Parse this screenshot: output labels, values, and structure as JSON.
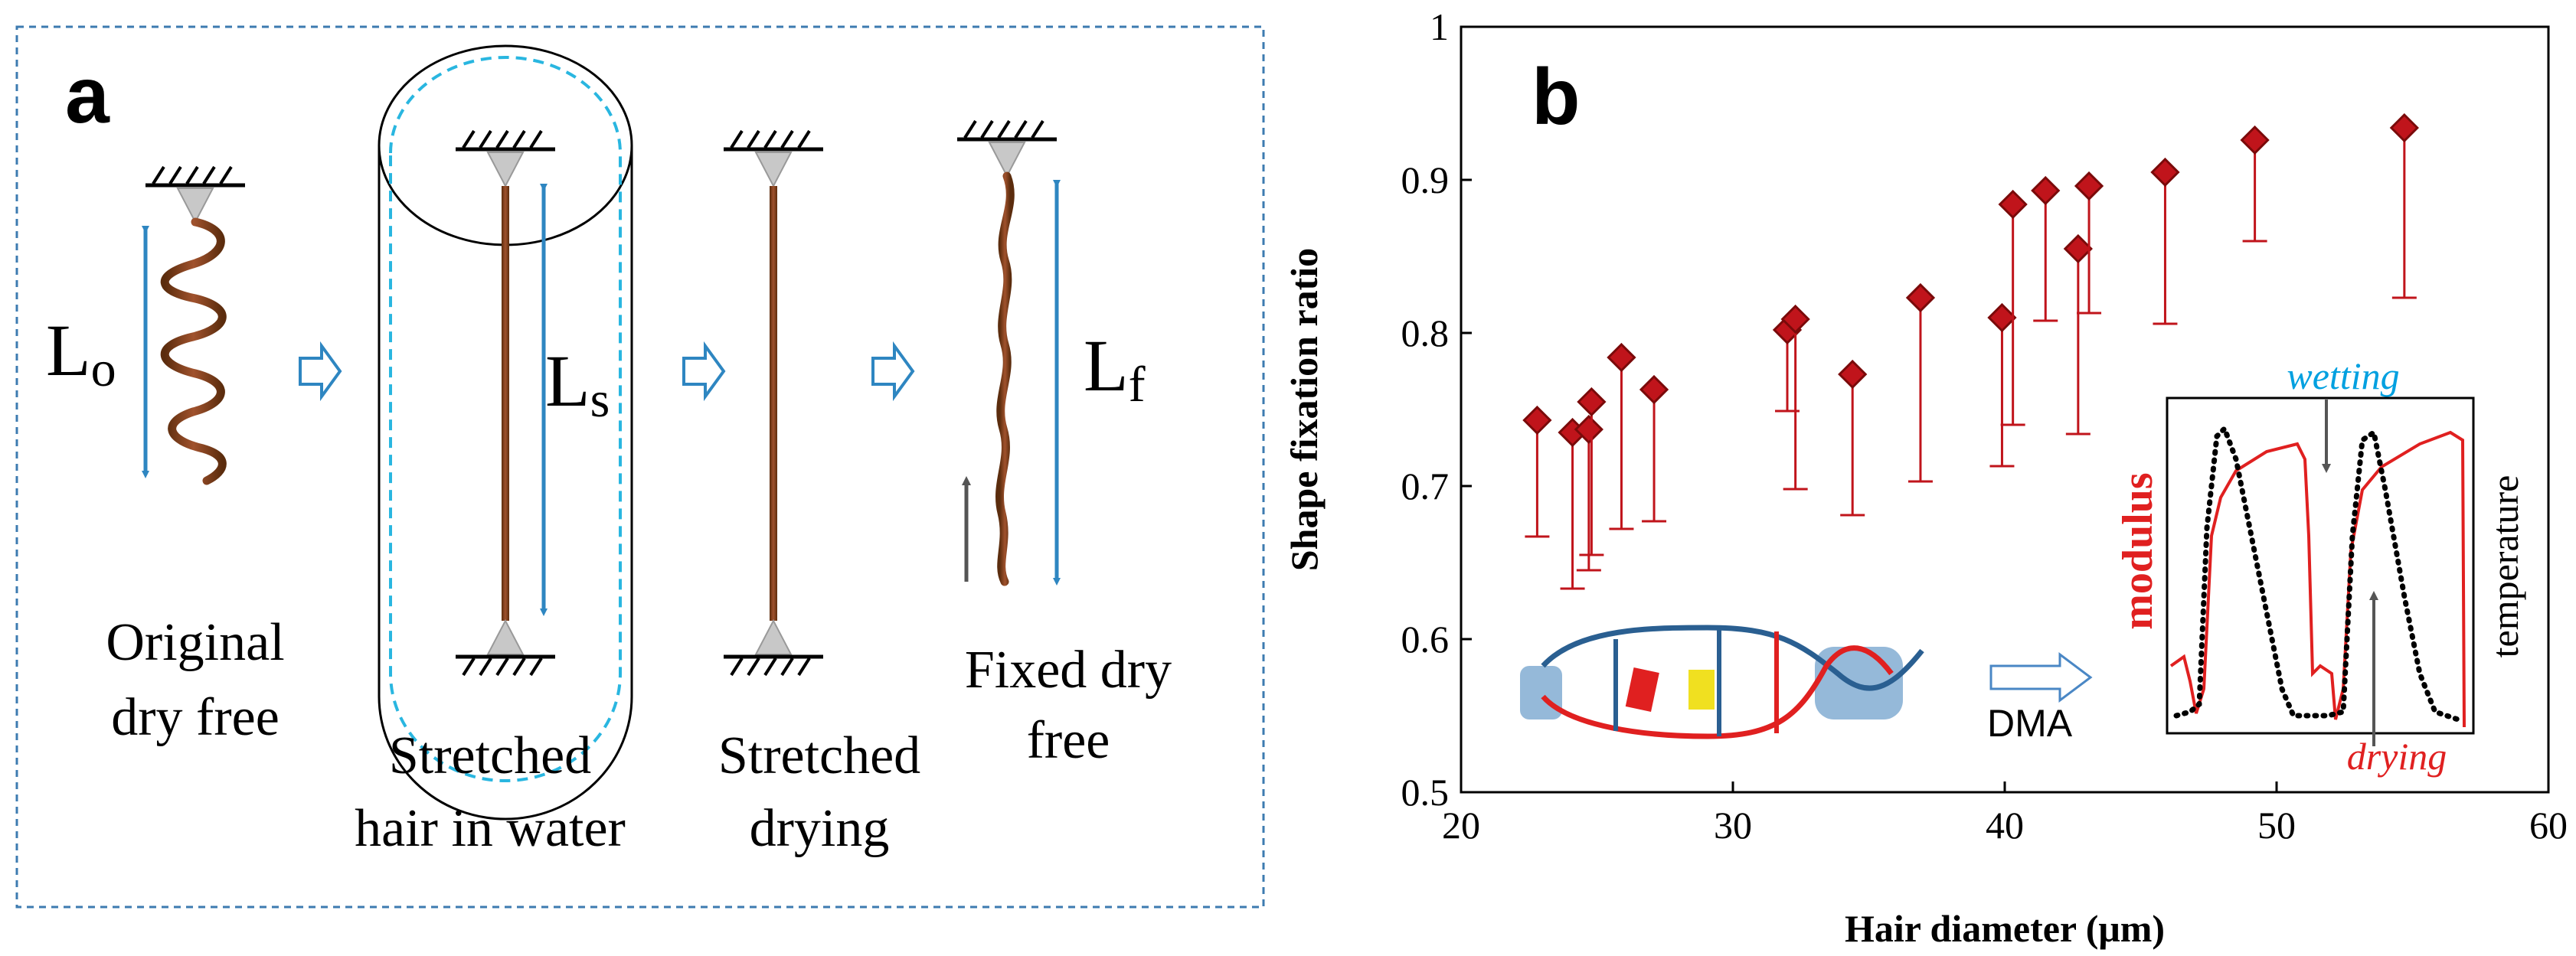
{
  "panel_a": {
    "letter": "a",
    "steps": [
      {
        "label_line1": "Original",
        "label_line2": "dry  free",
        "length_symbol": "L",
        "length_sub": "o"
      },
      {
        "label_line1": "Stretched",
        "label_line2": "hair  in water",
        "length_symbol": "L",
        "length_sub": "s"
      },
      {
        "label_line1": "Stretched",
        "label_line2": "drying"
      },
      {
        "label_line1": "Fixed dry",
        "label_line2": "free",
        "length_symbol": "L",
        "length_sub": "f"
      }
    ],
    "colors": {
      "hair": "#8b4513",
      "arrow": "#2e86c1",
      "frame": "#3d7bb0",
      "water": "#29b6e0"
    }
  },
  "panel_b": {
    "letter": "b",
    "inset": {
      "legend_left": "modulus",
      "legend_right": "temperature",
      "wetting": "wetting",
      "drying": "drying",
      "dma": "DMA"
    }
  },
  "chart_data": {
    "type": "scatter",
    "xlabel": "Hair diameter (μm)",
    "ylabel": "Shape fixation ratio",
    "xlim": [
      20,
      60
    ],
    "ylim": [
      0.5,
      1
    ],
    "xticks": [
      "20",
      "30",
      "40",
      "50",
      "60"
    ],
    "yticks": [
      "0.5",
      "0.6",
      "0.7",
      "0.8",
      "0.9",
      "1"
    ],
    "grid": false,
    "marker_color": "#c0141b",
    "points": [
      {
        "x": 22.8,
        "y": 0.743,
        "err_low": 0.667
      },
      {
        "x": 24.1,
        "y": 0.735,
        "err_low": 0.633
      },
      {
        "x": 24.7,
        "y": 0.737,
        "err_low": 0.645
      },
      {
        "x": 24.8,
        "y": 0.755,
        "err_low": 0.655
      },
      {
        "x": 25.9,
        "y": 0.784,
        "err_low": 0.672
      },
      {
        "x": 27.1,
        "y": 0.763,
        "err_low": 0.677
      },
      {
        "x": 32.0,
        "y": 0.802,
        "err_low": 0.749
      },
      {
        "x": 32.3,
        "y": 0.809,
        "err_low": 0.698
      },
      {
        "x": 34.4,
        "y": 0.773,
        "err_low": 0.681
      },
      {
        "x": 36.9,
        "y": 0.823,
        "err_low": 0.703
      },
      {
        "x": 39.9,
        "y": 0.81,
        "err_low": 0.713
      },
      {
        "x": 40.3,
        "y": 0.884,
        "err_low": 0.74
      },
      {
        "x": 41.5,
        "y": 0.893,
        "err_low": 0.808
      },
      {
        "x": 42.7,
        "y": 0.855,
        "err_low": 0.734
      },
      {
        "x": 43.1,
        "y": 0.896,
        "err_low": 0.813
      },
      {
        "x": 45.9,
        "y": 0.905,
        "err_low": 0.806
      },
      {
        "x": 49.2,
        "y": 0.926,
        "err_low": 0.86
      },
      {
        "x": 54.7,
        "y": 0.934,
        "err_low": 0.823
      }
    ]
  }
}
